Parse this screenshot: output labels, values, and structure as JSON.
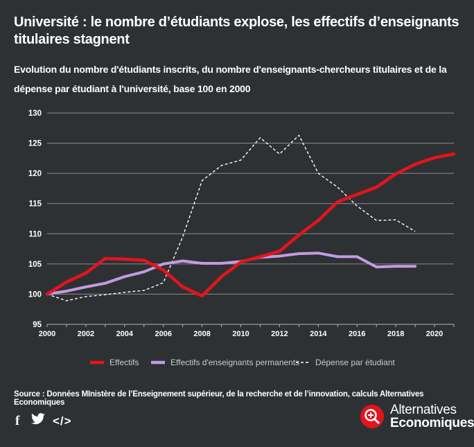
{
  "title": "Université : le nombre d’étudiants explose, les effectifs d’enseignants titulaires stagnent",
  "subtitle": "Evolution du nombre d'étudiants inscrits, du nombre d'enseignants-chercheurs titulaires et de la dépense par étudiant à l'université, base 100 en 2000",
  "chart_data": {
    "type": "line",
    "title": "Université : le nombre d’étudiants explose, les effectifs d’enseignants titulaires stagnent",
    "xlabel": "",
    "ylabel": "",
    "xlim": [
      2000,
      2021
    ],
    "ylim": [
      95,
      130
    ],
    "yticks": [
      95,
      100,
      105,
      110,
      115,
      120,
      125,
      130
    ],
    "xticks": [
      2000,
      2002,
      2004,
      2006,
      2008,
      2010,
      2012,
      2014,
      2016,
      2018,
      2020
    ],
    "grid": true,
    "legend_position": "bottom",
    "series": [
      {
        "name": "Effectifs",
        "color": "#e3141c",
        "style": "solid-thick",
        "x": [
          2000,
          2001,
          2002,
          2003,
          2004,
          2005,
          2006,
          2007,
          2008,
          2009,
          2010,
          2011,
          2012,
          2013,
          2014,
          2015,
          2016,
          2017,
          2018,
          2019,
          2020,
          2021
        ],
        "values": [
          100,
          102,
          103.5,
          105.9,
          105.8,
          105.6,
          104,
          101.2,
          99.7,
          102.9,
          105.3,
          106.2,
          107.1,
          109.8,
          112.2,
          115.3,
          116.5,
          117.7,
          119.9,
          121.5,
          122.6,
          123.2
        ]
      },
      {
        "name": "Effectifs d'enseignants permanents",
        "color": "#c49be2",
        "style": "solid-thick",
        "x": [
          2000,
          2001,
          2002,
          2003,
          2004,
          2005,
          2006,
          2007,
          2008,
          2009,
          2010,
          2011,
          2012,
          2013,
          2014,
          2015,
          2016,
          2017,
          2018,
          2019
        ],
        "values": [
          100,
          100.5,
          101.2,
          101.8,
          102.9,
          103.7,
          105,
          105.5,
          105.1,
          105.1,
          105.4,
          106.1,
          106.3,
          106.7,
          106.8,
          106.2,
          106.2,
          104.5,
          104.6,
          104.6
        ]
      },
      {
        "name": "Dépense par étudiant",
        "color": "#ffffff",
        "style": "dashed",
        "x": [
          2000,
          2001,
          2002,
          2003,
          2004,
          2005,
          2006,
          2007,
          2008,
          2009,
          2010,
          2011,
          2012,
          2013,
          2014,
          2015,
          2016,
          2017,
          2018,
          2019
        ],
        "values": [
          100,
          98.9,
          99.6,
          99.9,
          100.3,
          100.6,
          101.9,
          109.5,
          118.8,
          121.3,
          122.2,
          125.9,
          123.2,
          126.3,
          120,
          117.7,
          114.6,
          112.2,
          112.3,
          110.4
        ]
      }
    ]
  },
  "source": "Source : Données MInistère de l’Enseignement supérieur, de la recherche et de l’innovation, calculs Alternatives Economiques",
  "logo": {
    "line1": "Alternatives",
    "line2": "Economiques",
    "color": "#e3141c"
  },
  "social": {
    "facebook_glyph": "f",
    "embed_glyph": "</>"
  }
}
